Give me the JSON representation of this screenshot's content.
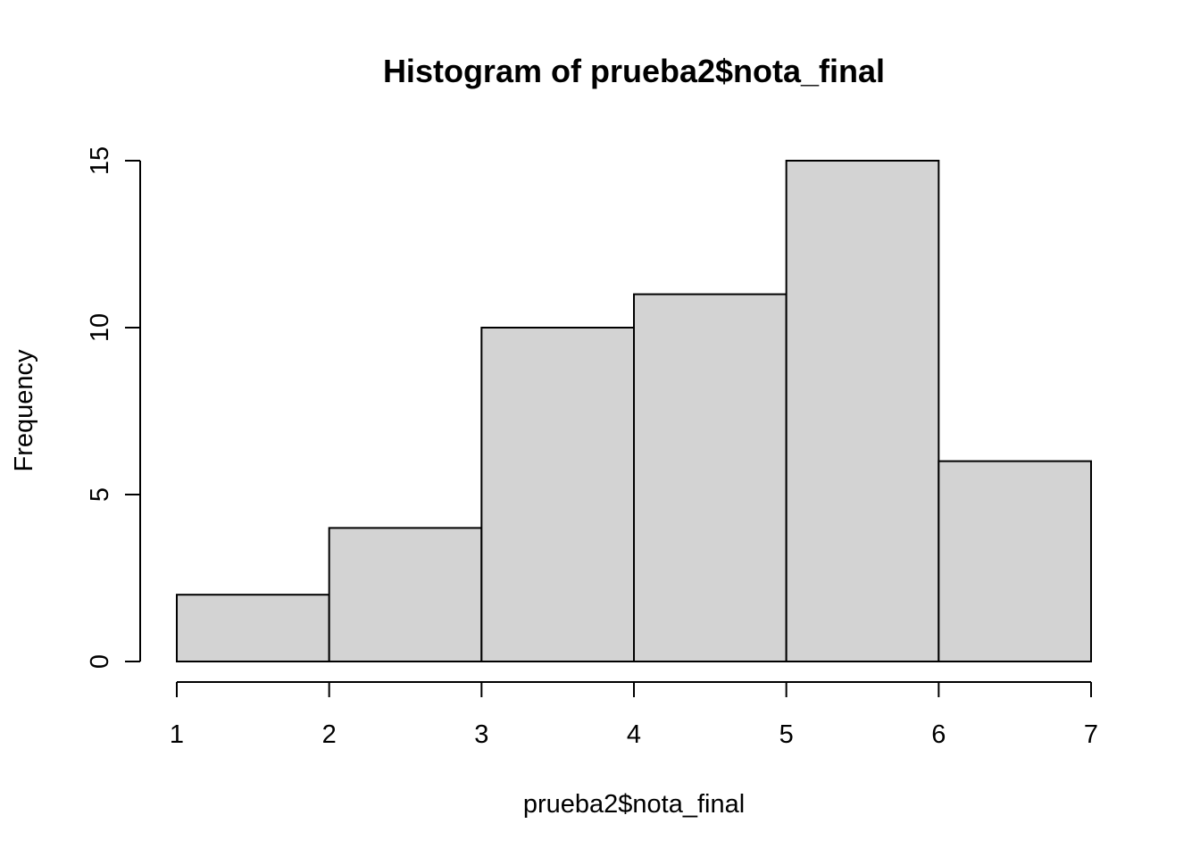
{
  "chart_data": {
    "type": "bar",
    "subtype": "histogram",
    "title": "Histogram of prueba2$nota_final",
    "xlabel": "prueba2$nota_final",
    "ylabel": "Frequency",
    "bins": [
      {
        "from": 1,
        "to": 2,
        "count": 2
      },
      {
        "from": 2,
        "to": 3,
        "count": 4
      },
      {
        "from": 3,
        "to": 4,
        "count": 10
      },
      {
        "from": 4,
        "to": 5,
        "count": 11
      },
      {
        "from": 5,
        "to": 6,
        "count": 15
      },
      {
        "from": 6,
        "to": 7,
        "count": 6
      }
    ],
    "xlim": [
      1,
      7
    ],
    "ylim": [
      0,
      15
    ],
    "x_ticks": [
      "1",
      "2",
      "3",
      "4",
      "5",
      "6",
      "7"
    ],
    "y_ticks": [
      "0",
      "5",
      "10",
      "15"
    ],
    "grid": false,
    "bar_color": "#d3d3d3",
    "edge_color": "#000000"
  }
}
